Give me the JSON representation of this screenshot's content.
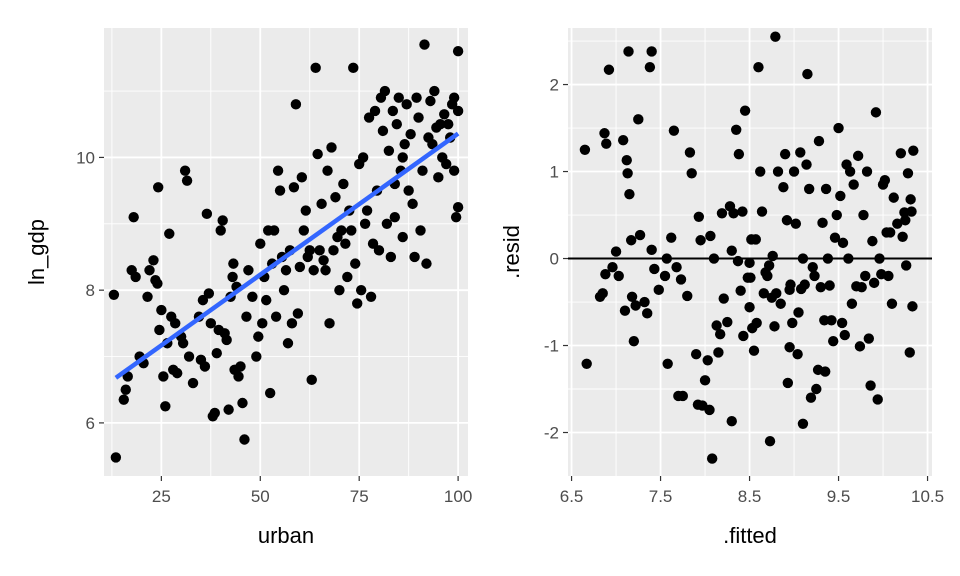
{
  "colors": {
    "panel_background": "#ebebeb",
    "grid_major": "#ffffff",
    "point": "#000000",
    "fit_line": "#3366ff",
    "reference_line": "#000000"
  },
  "chart_data": [
    {
      "type": "scatter",
      "overlay": "linear regression line",
      "xlabel": "urban",
      "ylabel": "ln_gdp",
      "xlim": [
        10.5,
        102.5
      ],
      "ylim": [
        5.2,
        11.95
      ],
      "x_ticks": [
        25,
        50,
        75,
        100
      ],
      "x_tick_labels": [
        "25",
        "50",
        "75",
        "100"
      ],
      "y_ticks": [
        6,
        8,
        10
      ],
      "y_tick_labels": [
        "6",
        "8",
        "10"
      ],
      "grid": true,
      "fit_line": {
        "x": [
          13.5,
          100
        ],
        "y": [
          6.68,
          10.36
        ]
      },
      "points": [
        [
          13.5,
          5.48
        ],
        [
          13.0,
          7.93
        ],
        [
          15.5,
          6.35
        ],
        [
          16.0,
          6.5
        ],
        [
          16.5,
          6.7
        ],
        [
          17.5,
          8.3
        ],
        [
          18.5,
          8.2
        ],
        [
          18.0,
          9.1
        ],
        [
          19.5,
          7.0
        ],
        [
          20.5,
          6.9
        ],
        [
          21.5,
          7.9
        ],
        [
          22.0,
          8.3
        ],
        [
          23.0,
          8.45
        ],
        [
          23.5,
          8.15
        ],
        [
          24.0,
          8.1
        ],
        [
          24.5,
          7.4
        ],
        [
          24.2,
          9.55
        ],
        [
          25.0,
          7.7
        ],
        [
          25.5,
          6.7
        ],
        [
          26.0,
          6.25
        ],
        [
          26.5,
          7.2
        ],
        [
          27.0,
          8.85
        ],
        [
          27.5,
          7.6
        ],
        [
          28.0,
          6.8
        ],
        [
          28.5,
          7.5
        ],
        [
          29.0,
          6.75
        ],
        [
          30.0,
          7.3
        ],
        [
          30.5,
          7.2
        ],
        [
          31.0,
          9.8
        ],
        [
          31.5,
          9.65
        ],
        [
          32.0,
          7.0
        ],
        [
          33.0,
          6.6
        ],
        [
          34.5,
          7.6
        ],
        [
          35.0,
          6.95
        ],
        [
          35.5,
          7.85
        ],
        [
          36.0,
          6.85
        ],
        [
          36.5,
          9.15
        ],
        [
          37.0,
          7.95
        ],
        [
          37.5,
          7.5
        ],
        [
          38.0,
          6.1
        ],
        [
          38.5,
          6.15
        ],
        [
          39.0,
          7.05
        ],
        [
          39.5,
          7.4
        ],
        [
          40.0,
          8.9
        ],
        [
          40.5,
          9.05
        ],
        [
          41.0,
          7.35
        ],
        [
          41.5,
          7.25
        ],
        [
          42.0,
          6.2
        ],
        [
          42.5,
          7.9
        ],
        [
          43.0,
          8.2
        ],
        [
          43.5,
          6.8
        ],
        [
          43.2,
          8.4
        ],
        [
          44.0,
          8.05
        ],
        [
          44.5,
          6.7
        ],
        [
          45.0,
          6.85
        ],
        [
          45.5,
          6.3
        ],
        [
          46.0,
          5.75
        ],
        [
          46.5,
          7.6
        ],
        [
          47.0,
          8.3
        ],
        [
          48.0,
          7.9
        ],
        [
          49.0,
          7.0
        ],
        [
          49.5,
          7.3
        ],
        [
          50.0,
          8.7
        ],
        [
          50.5,
          7.5
        ],
        [
          51.0,
          8.2
        ],
        [
          51.5,
          7.85
        ],
        [
          52.0,
          8.9
        ],
        [
          52.5,
          6.45
        ],
        [
          53.0,
          8.4
        ],
        [
          53.5,
          8.9
        ],
        [
          54.0,
          7.6
        ],
        [
          54.5,
          9.8
        ],
        [
          55.0,
          9.5
        ],
        [
          55.5,
          8.5
        ],
        [
          56.0,
          8.0
        ],
        [
          56.5,
          8.3
        ],
        [
          57.0,
          7.2
        ],
        [
          57.5,
          8.6
        ],
        [
          58.0,
          7.5
        ],
        [
          58.5,
          9.55
        ],
        [
          59.0,
          10.8
        ],
        [
          59.5,
          7.65
        ],
        [
          60.0,
          8.35
        ],
        [
          60.5,
          9.7
        ],
        [
          61.0,
          8.9
        ],
        [
          61.5,
          9.2
        ],
        [
          62.0,
          8.5
        ],
        [
          62.5,
          8.6
        ],
        [
          63.0,
          6.65
        ],
        [
          63.5,
          8.3
        ],
        [
          64.0,
          11.35
        ],
        [
          64.5,
          10.05
        ],
        [
          65.0,
          8.6
        ],
        [
          65.5,
          9.3
        ],
        [
          66.0,
          8.45
        ],
        [
          66.5,
          8.3
        ],
        [
          67.0,
          9.8
        ],
        [
          67.5,
          7.5
        ],
        [
          68.0,
          10.15
        ],
        [
          68.5,
          8.6
        ],
        [
          69.0,
          9.4
        ],
        [
          69.5,
          8.8
        ],
        [
          70.0,
          8.0
        ],
        [
          70.5,
          8.9
        ],
        [
          71.0,
          9.6
        ],
        [
          71.5,
          8.7
        ],
        [
          72.0,
          8.2
        ],
        [
          72.5,
          9.2
        ],
        [
          73.0,
          8.9
        ],
        [
          73.5,
          11.35
        ],
        [
          74.0,
          8.4
        ],
        [
          74.5,
          7.8
        ],
        [
          75.0,
          9.9
        ],
        [
          75.5,
          8.0
        ],
        [
          76.0,
          10.0
        ],
        [
          76.5,
          9.0
        ],
        [
          77.0,
          9.2
        ],
        [
          77.5,
          10.6
        ],
        [
          78.0,
          7.9
        ],
        [
          78.5,
          8.7
        ],
        [
          79.0,
          10.7
        ],
        [
          79.5,
          9.5
        ],
        [
          80.0,
          8.6
        ],
        [
          80.5,
          10.9
        ],
        [
          81.0,
          10.4
        ],
        [
          81.5,
          11.0
        ],
        [
          82.0,
          9.0
        ],
        [
          82.5,
          10.1
        ],
        [
          83.0,
          8.5
        ],
        [
          83.5,
          10.7
        ],
        [
          84.0,
          9.6
        ],
        [
          84.5,
          10.5
        ],
        [
          85.0,
          10.9
        ],
        [
          85.5,
          9.8
        ],
        [
          86.0,
          8.8
        ],
        [
          86.5,
          10.2
        ],
        [
          87.0,
          10.8
        ],
        [
          87.5,
          9.5
        ],
        [
          88.0,
          10.35
        ],
        [
          88.5,
          9.3
        ],
        [
          89.0,
          8.5
        ],
        [
          89.5,
          10.9
        ],
        [
          90.0,
          10.6
        ],
        [
          90.5,
          8.9
        ],
        [
          91.0,
          9.8
        ],
        [
          91.5,
          11.7
        ],
        [
          92.0,
          8.4
        ],
        [
          92.5,
          10.3
        ],
        [
          93.0,
          10.85
        ],
        [
          93.5,
          10.2
        ],
        [
          94.0,
          11.0
        ],
        [
          94.5,
          10.45
        ],
        [
          95.0,
          9.7
        ],
        [
          95.5,
          10.5
        ],
        [
          96.0,
          10.0
        ],
        [
          96.5,
          10.65
        ],
        [
          97.0,
          9.9
        ],
        [
          97.5,
          10.5
        ],
        [
          98.0,
          10.3
        ],
        [
          98.5,
          10.8
        ],
        [
          99.0,
          10.9
        ],
        [
          99.5,
          9.1
        ],
        [
          100.0,
          11.6
        ],
        [
          100.0,
          10.7
        ],
        [
          99.0,
          9.8
        ],
        [
          100.0,
          9.25
        ],
        [
          86.0,
          10.0
        ],
        [
          84.0,
          9.1
        ]
      ]
    },
    {
      "type": "scatter",
      "overlay": "horizontal reference line at y = 0",
      "xlabel": ".fitted",
      "ylabel": ".resid",
      "xlim": [
        6.46,
        10.55
      ],
      "ylim": [
        -2.5,
        2.65
      ],
      "x_ticks": [
        6.5,
        7.5,
        8.5,
        9.5,
        10.5
      ],
      "x_tick_labels": [
        "6.5",
        "7.5",
        "8.5",
        "9.5",
        "10.5"
      ],
      "y_ticks": [
        -2,
        -1,
        0,
        1,
        2
      ],
      "y_tick_labels": [
        "-2",
        "-1",
        "0",
        "1",
        "2"
      ],
      "grid": true,
      "reference_line_y": 0,
      "points": [
        [
          6.65,
          1.25
        ],
        [
          6.67,
          -1.21
        ],
        [
          6.82,
          -0.44
        ],
        [
          6.85,
          -0.4
        ],
        [
          6.87,
          1.44
        ],
        [
          6.88,
          -0.18
        ],
        [
          6.89,
          1.32
        ],
        [
          6.92,
          2.17
        ],
        [
          6.96,
          -0.1
        ],
        [
          7.0,
          0.08
        ],
        [
          7.03,
          -0.2
        ],
        [
          7.08,
          1.36
        ],
        [
          7.1,
          -0.6
        ],
        [
          7.12,
          1.13
        ],
        [
          7.13,
          0.98
        ],
        [
          7.14,
          2.38
        ],
        [
          7.15,
          0.74
        ],
        [
          7.17,
          0.21
        ],
        [
          7.18,
          -0.44
        ],
        [
          7.2,
          -0.95
        ],
        [
          7.22,
          -0.54
        ],
        [
          7.25,
          1.6
        ],
        [
          7.27,
          0.27
        ],
        [
          7.32,
          -0.5
        ],
        [
          7.35,
          -0.63
        ],
        [
          7.38,
          2.2
        ],
        [
          7.4,
          2.38
        ],
        [
          7.43,
          -0.12
        ],
        [
          7.48,
          -0.36
        ],
        [
          7.55,
          -0.2
        ],
        [
          7.57,
          0.0
        ],
        [
          7.58,
          -1.21
        ],
        [
          7.62,
          0.24
        ],
        [
          7.65,
          1.47
        ],
        [
          7.68,
          -0.1
        ],
        [
          7.7,
          -1.58
        ],
        [
          7.73,
          -0.24
        ],
        [
          7.75,
          -1.58
        ],
        [
          7.8,
          -0.43
        ],
        [
          7.83,
          1.22
        ],
        [
          7.85,
          0.98
        ],
        [
          7.9,
          -1.1
        ],
        [
          7.92,
          -1.68
        ],
        [
          7.93,
          0.48
        ],
        [
          7.95,
          0.21
        ],
        [
          7.97,
          -1.69
        ],
        [
          8.0,
          -1.4
        ],
        [
          8.03,
          -1.17
        ],
        [
          8.05,
          -1.74
        ],
        [
          8.06,
          0.26
        ],
        [
          8.08,
          -2.3
        ],
        [
          8.1,
          0.0
        ],
        [
          8.13,
          -0.77
        ],
        [
          8.15,
          -1.08
        ],
        [
          8.17,
          -0.87
        ],
        [
          8.19,
          0.52
        ],
        [
          8.21,
          -0.46
        ],
        [
          8.25,
          -0.73
        ],
        [
          8.28,
          0.6
        ],
        [
          8.3,
          -1.87
        ],
        [
          8.3,
          0.09
        ],
        [
          8.32,
          0.52
        ],
        [
          8.35,
          1.48
        ],
        [
          8.37,
          -0.03
        ],
        [
          8.38,
          1.2
        ],
        [
          8.4,
          -0.37
        ],
        [
          8.42,
          0.54
        ],
        [
          8.43,
          -0.89
        ],
        [
          8.45,
          1.7
        ],
        [
          8.48,
          -0.22
        ],
        [
          8.5,
          -0.56
        ],
        [
          8.51,
          -0.22
        ],
        [
          8.52,
          0.22
        ],
        [
          8.53,
          -0.8
        ],
        [
          8.55,
          -1.06
        ],
        [
          8.57,
          0.22
        ],
        [
          8.58,
          -0.74
        ],
        [
          8.6,
          2.2
        ],
        [
          8.62,
          1.0
        ],
        [
          8.64,
          0.54
        ],
        [
          8.66,
          -0.4
        ],
        [
          8.68,
          -0.16
        ],
        [
          8.7,
          -0.2
        ],
        [
          8.72,
          -0.08
        ],
        [
          8.73,
          -2.1
        ],
        [
          8.75,
          -0.45
        ],
        [
          8.76,
          0.03
        ],
        [
          8.78,
          -0.78
        ],
        [
          8.79,
          2.55
        ],
        [
          8.8,
          -0.4
        ],
        [
          8.82,
          1.0
        ],
        [
          8.85,
          -0.52
        ],
        [
          8.88,
          0.82
        ],
        [
          8.9,
          1.2
        ],
        [
          8.92,
          0.44
        ],
        [
          8.93,
          -1.43
        ],
        [
          8.95,
          -0.36
        ],
        [
          8.96,
          -0.3
        ],
        [
          8.98,
          -0.74
        ],
        [
          9.0,
          1.0
        ],
        [
          9.02,
          0.4
        ],
        [
          9.04,
          -1.1
        ],
        [
          9.05,
          -0.62
        ],
        [
          9.07,
          1.22
        ],
        [
          9.08,
          -0.35
        ],
        [
          9.1,
          0.0
        ],
        [
          9.12,
          -0.3
        ],
        [
          9.14,
          1.08
        ],
        [
          9.15,
          2.12
        ],
        [
          9.17,
          0.8
        ],
        [
          9.19,
          -1.6
        ],
        [
          9.21,
          -0.1
        ],
        [
          9.23,
          -0.2
        ],
        [
          9.25,
          -1.5
        ],
        [
          9.27,
          -1.28
        ],
        [
          9.28,
          1.35
        ],
        [
          9.3,
          -0.33
        ],
        [
          9.32,
          0.41
        ],
        [
          9.34,
          -0.71
        ],
        [
          9.36,
          0.8
        ],
        [
          9.38,
          0.0
        ],
        [
          9.4,
          -0.31
        ],
        [
          9.42,
          -0.71
        ],
        [
          9.44,
          -0.95
        ],
        [
          9.46,
          0.24
        ],
        [
          9.48,
          0.5
        ],
        [
          9.5,
          1.5
        ],
        [
          9.52,
          0.72
        ],
        [
          9.54,
          -0.74
        ],
        [
          9.55,
          0.18
        ],
        [
          9.57,
          -0.88
        ],
        [
          9.59,
          1.08
        ],
        [
          9.61,
          0.0
        ],
        [
          9.63,
          1.0
        ],
        [
          9.65,
          -0.52
        ],
        [
          9.67,
          0.85
        ],
        [
          9.7,
          -0.32
        ],
        [
          9.72,
          1.18
        ],
        [
          9.74,
          -1.01
        ],
        [
          9.76,
          -0.33
        ],
        [
          9.78,
          0.5
        ],
        [
          9.8,
          -0.2
        ],
        [
          9.82,
          1.0
        ],
        [
          9.84,
          -0.92
        ],
        [
          9.86,
          -1.46
        ],
        [
          9.88,
          0.2
        ],
        [
          9.9,
          -0.28
        ],
        [
          9.92,
          1.68
        ],
        [
          9.94,
          -1.62
        ],
        [
          9.96,
          0.0
        ],
        [
          9.98,
          -0.18
        ],
        [
          10.0,
          0.85
        ],
        [
          10.02,
          0.9
        ],
        [
          10.04,
          0.3
        ],
        [
          10.06,
          -0.2
        ],
        [
          10.08,
          0.3
        ],
        [
          10.1,
          -0.52
        ],
        [
          10.12,
          0.7
        ],
        [
          10.16,
          0.4
        ],
        [
          10.2,
          1.21
        ],
        [
          10.22,
          0.25
        ],
        [
          10.24,
          0.53
        ],
        [
          10.25,
          0.44
        ],
        [
          10.26,
          -0.08
        ],
        [
          10.28,
          0.98
        ],
        [
          10.3,
          -1.08
        ],
        [
          10.31,
          0.68
        ],
        [
          10.32,
          0.54
        ],
        [
          10.33,
          -0.55
        ],
        [
          10.34,
          1.24
        ],
        [
          9.35,
          -1.3
        ],
        [
          9.1,
          -1.9
        ],
        [
          8.5,
          -0.05
        ],
        [
          7.4,
          0.1
        ],
        [
          8.95,
          -1.02
        ]
      ]
    }
  ]
}
